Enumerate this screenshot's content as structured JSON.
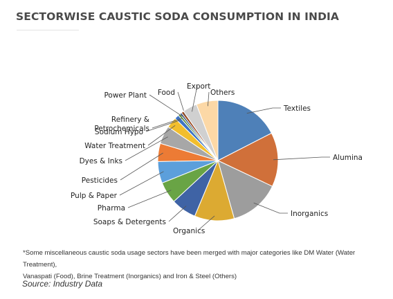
{
  "title": "SECTORWISE CAUSTIC SODA CONSUMPTION IN INDIA",
  "footnote_line1": "*Some miscellaneous caustic soda usage sectors have been merged with major categories like DM Water (Water Treatment),",
  "footnote_line2": "Vanaspati (Food), Brine Treatment (Inorganics) and Iron & Steel (Others)",
  "source": "Source: Industry Data",
  "chart_data": {
    "type": "pie",
    "title": "",
    "unit": "share",
    "slices": [
      {
        "label": "Textiles",
        "value": 18,
        "color": "#4e80b8"
      },
      {
        "label": "Alumina",
        "value": 15,
        "color": "#d0703a"
      },
      {
        "label": "Inorganics",
        "value": 14,
        "color": "#9d9d9d"
      },
      {
        "label": "Organics",
        "value": 11,
        "color": "#dcaa32"
      },
      {
        "label": "Soaps & Detergents",
        "value": 7,
        "color": "#3f63a5"
      },
      {
        "label": "Pharma",
        "value": 6,
        "color": "#69a445"
      },
      {
        "label": "Pulp & Paper",
        "value": 6,
        "color": "#5c9fdb"
      },
      {
        "label": "Pesticides",
        "value": 5,
        "color": "#ec7b35"
      },
      {
        "label": "Dyes & Inks",
        "value": 5,
        "color": "#a7a7a7"
      },
      {
        "label": "Water Treatment",
        "value": 3,
        "color": "#f2be2d"
      },
      {
        "label": "Sodium Hypo",
        "value": 1.2,
        "color": "#3d73c4"
      },
      {
        "label": "Refinery & Petrochemicals",
        "value": 0.6,
        "color": "#5b8f3c"
      },
      {
        "label": "Power Plant",
        "value": 0.5,
        "color": "#254878"
      },
      {
        "label": "Food",
        "value": 0.7,
        "color": "#9a4a22"
      },
      {
        "label": "Export",
        "value": 4,
        "color": "#d0d0d0"
      },
      {
        "label": "Others",
        "value": 6,
        "color": "#fcd8a6"
      }
    ]
  }
}
